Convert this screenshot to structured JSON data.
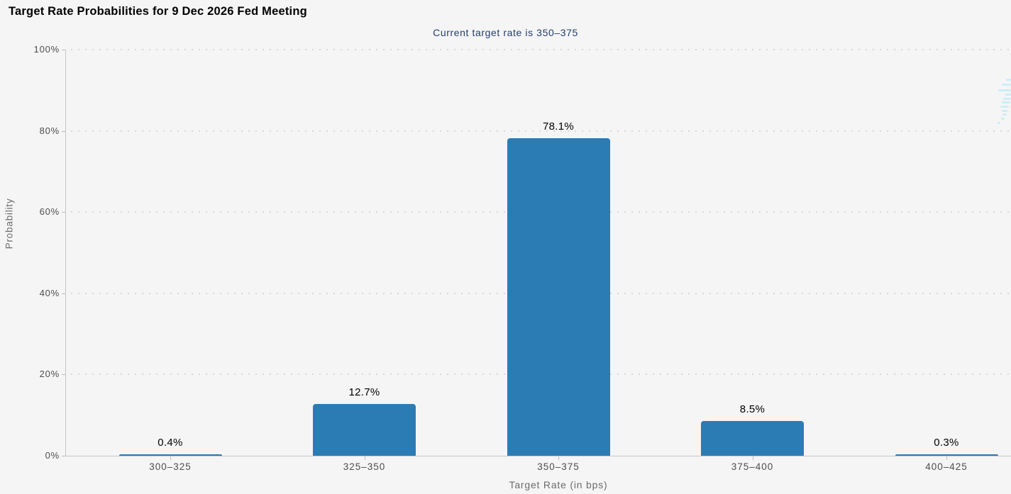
{
  "chart_data": {
    "type": "bar",
    "title": "Target Rate Probabilities for 9 Dec 2026 Fed Meeting",
    "subtitle": "Current target rate is 350–375",
    "categories": [
      "300–325",
      "325–350",
      "350–375",
      "375–400",
      "400–425"
    ],
    "values": [
      0.4,
      12.7,
      78.1,
      8.5,
      0.3
    ],
    "value_labels": [
      "0.4%",
      "12.7%",
      "78.1%",
      "8.5%",
      "0.3%"
    ],
    "xlabel": "Target Rate (in bps)",
    "ylabel": "Probability",
    "ylim": [
      0,
      100
    ],
    "ytick_interval": 20,
    "ytick_labels": [
      "0%",
      "20%",
      "40%",
      "60%",
      "80%",
      "100%"
    ],
    "grid": "horizontal-dotted",
    "legend_position": "none"
  },
  "colors": {
    "background": "#f5f5f6",
    "bar": "#2b7cb5",
    "title_text": "#000000",
    "subtitle_text": "#223d6d",
    "axis_text": "#4d4d4d",
    "axis_title_text": "#6b6b6b",
    "value_label_text": "#000000",
    "axis_line": "#c6c6c6",
    "gridline": "#d8d8d8",
    "watermark": "#cdeef7"
  },
  "icons": {
    "watermark": "cme-watermark-icon"
  }
}
